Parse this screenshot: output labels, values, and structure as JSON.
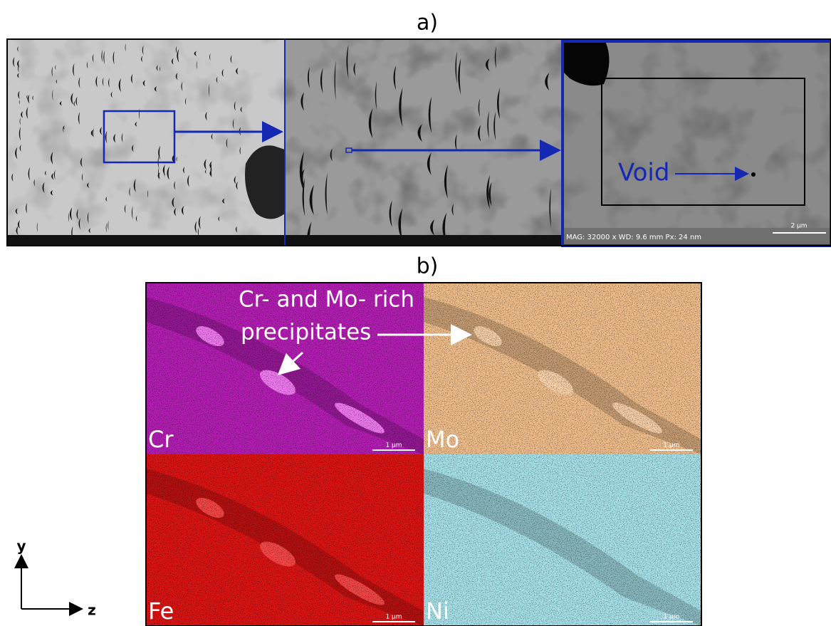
{
  "figure": {
    "panel_a": {
      "label": "a)",
      "sem_footer": "MAG: 32000 x  WD: 9.6 mm  Px: 24 nm",
      "void_label": "Void",
      "scale_bar": "2 µm"
    },
    "panel_b": {
      "label": "b)",
      "annotation": [
        "Cr- and Mo- rich",
        "precipitates"
      ],
      "maps": [
        {
          "element": "Cr",
          "scale_bar": "1 µm"
        },
        {
          "element": "Mo",
          "scale_bar": "1 µm"
        },
        {
          "element": "Fe",
          "scale_bar": "1 µm"
        },
        {
          "element": "Ni",
          "scale_bar": "1 µm"
        }
      ]
    },
    "axes": {
      "y": "y",
      "z": "z"
    }
  }
}
